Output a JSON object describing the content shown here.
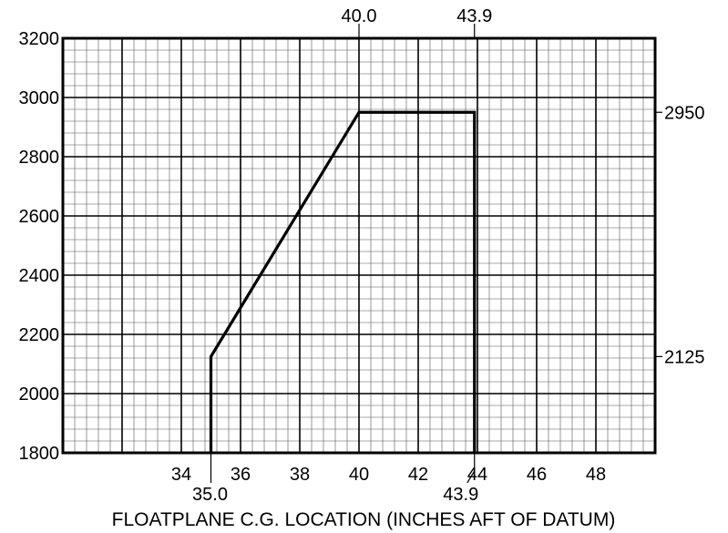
{
  "chart_data": {
    "type": "line",
    "title": "",
    "xlabel": "FLOATPLANE C.G. LOCATION (INCHES AFT OF DATUM)",
    "ylabel": "",
    "xlim": [
      30,
      50
    ],
    "ylim": [
      1800,
      3200
    ],
    "x_ticks": [
      34,
      36,
      38,
      40,
      42,
      44,
      46,
      48
    ],
    "x_tick_labels": [
      "34",
      "36",
      "38",
      "40",
      "42",
      "44",
      "46",
      "48"
    ],
    "y_ticks": [
      1800,
      2000,
      2200,
      2400,
      2600,
      2800,
      3000,
      3200
    ],
    "y_tick_labels": [
      "1800",
      "2000",
      "2200",
      "2400",
      "2600",
      "2800",
      "3000",
      "3200"
    ],
    "grid": true,
    "grid_major_x": 2,
    "grid_major_y": 200,
    "grid_minor_x": 0.4,
    "grid_minor_y": 40,
    "series": [
      {
        "x": [
          35.0,
          35.0,
          40.0,
          43.9,
          43.9
        ],
        "y": [
          1800,
          2125,
          2950,
          2950,
          1800
        ]
      }
    ],
    "annotations": {
      "top": [
        {
          "x": 40.0,
          "label": "40.0"
        },
        {
          "x": 43.9,
          "label": "43.9"
        }
      ],
      "right": [
        {
          "y": 2950,
          "label": "2950"
        },
        {
          "y": 2125,
          "label": "2125"
        }
      ],
      "bottom": [
        {
          "x": 35.0,
          "label": "35.0"
        },
        {
          "x": 43.9,
          "label": "43.9"
        }
      ]
    }
  }
}
